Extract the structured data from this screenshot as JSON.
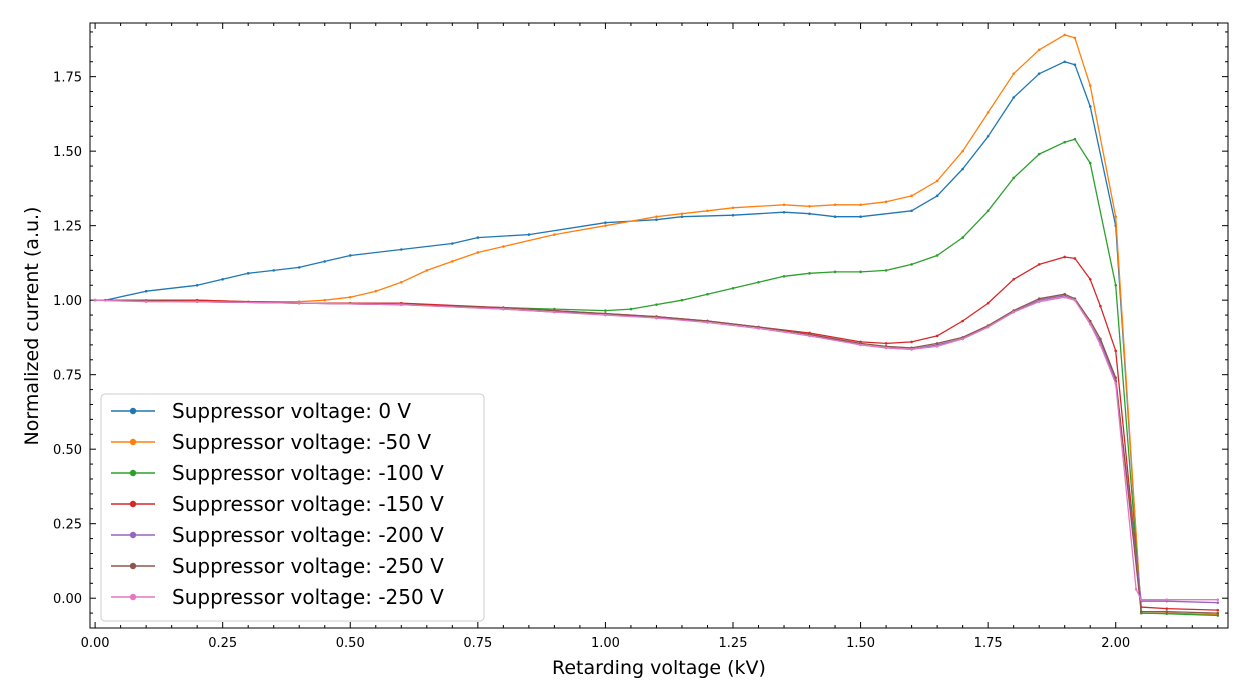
{
  "chart_data": {
    "type": "line",
    "xlabel": "Retarding voltage (kV)",
    "ylabel": "Normalized current (a.u.)",
    "xlim": [
      -0.01,
      2.22
    ],
    "ylim": [
      -0.1,
      1.93
    ],
    "xticks": [
      0.0,
      0.25,
      0.5,
      0.75,
      1.0,
      1.25,
      1.5,
      1.75,
      2.0
    ],
    "xtick_labels": [
      "0.00",
      "0.25",
      "0.50",
      "0.75",
      "1.00",
      "1.25",
      "1.50",
      "1.75",
      "2.00"
    ],
    "yticks": [
      0.0,
      0.25,
      0.5,
      0.75,
      1.0,
      1.25,
      1.5,
      1.75
    ],
    "ytick_labels": [
      "0.00",
      "0.25",
      "0.50",
      "0.75",
      "1.00",
      "1.25",
      "1.50",
      "1.75"
    ],
    "xminor_step": 0.05,
    "yminor_step": 0.05,
    "legend_position": "lower-left",
    "series": [
      {
        "name": "Suppressor voltage: 0 V",
        "color": "#1f77b4",
        "x": [
          0.02,
          0.1,
          0.2,
          0.25,
          0.3,
          0.35,
          0.4,
          0.45,
          0.5,
          0.6,
          0.7,
          0.75,
          0.85,
          1.0,
          1.1,
          1.15,
          1.25,
          1.35,
          1.4,
          1.45,
          1.5,
          1.6,
          1.65,
          1.7,
          1.75,
          1.8,
          1.85,
          1.9,
          1.92,
          1.95,
          2.0,
          2.05,
          2.1,
          2.2
        ],
        "y": [
          1.0,
          1.03,
          1.05,
          1.07,
          1.09,
          1.1,
          1.11,
          1.13,
          1.15,
          1.17,
          1.19,
          1.21,
          1.22,
          1.26,
          1.27,
          1.28,
          1.285,
          1.295,
          1.29,
          1.28,
          1.28,
          1.3,
          1.35,
          1.44,
          1.55,
          1.68,
          1.76,
          1.8,
          1.79,
          1.65,
          1.25,
          -0.05,
          -0.05,
          -0.055
        ]
      },
      {
        "name": "Suppressor voltage: -50 V",
        "color": "#ff7f0e",
        "x": [
          0.0,
          0.1,
          0.2,
          0.3,
          0.4,
          0.45,
          0.5,
          0.55,
          0.6,
          0.65,
          0.7,
          0.75,
          0.8,
          0.9,
          1.0,
          1.1,
          1.15,
          1.2,
          1.25,
          1.35,
          1.4,
          1.45,
          1.5,
          1.55,
          1.6,
          1.65,
          1.7,
          1.75,
          1.8,
          1.85,
          1.9,
          1.92,
          1.95,
          2.0,
          2.05,
          2.1,
          2.2
        ],
        "y": [
          1.0,
          1.0,
          1.0,
          0.995,
          0.995,
          1.0,
          1.01,
          1.03,
          1.06,
          1.1,
          1.13,
          1.16,
          1.18,
          1.22,
          1.25,
          1.28,
          1.29,
          1.3,
          1.31,
          1.32,
          1.315,
          1.32,
          1.32,
          1.33,
          1.35,
          1.4,
          1.5,
          1.63,
          1.76,
          1.84,
          1.89,
          1.88,
          1.72,
          1.28,
          -0.05,
          -0.05,
          -0.055
        ]
      },
      {
        "name": "Suppressor voltage: -100 V",
        "color": "#2ca02c",
        "x": [
          0.0,
          0.2,
          0.4,
          0.5,
          0.7,
          0.8,
          0.9,
          1.0,
          1.05,
          1.1,
          1.15,
          1.2,
          1.25,
          1.3,
          1.35,
          1.4,
          1.45,
          1.5,
          1.55,
          1.6,
          1.65,
          1.7,
          1.75,
          1.8,
          1.85,
          1.9,
          1.92,
          1.95,
          2.0,
          2.05,
          2.1,
          2.2
        ],
        "y": [
          1.0,
          0.995,
          0.99,
          0.99,
          0.98,
          0.975,
          0.97,
          0.965,
          0.97,
          0.985,
          1.0,
          1.02,
          1.04,
          1.06,
          1.08,
          1.09,
          1.095,
          1.095,
          1.1,
          1.12,
          1.15,
          1.21,
          1.3,
          1.41,
          1.49,
          1.53,
          1.54,
          1.46,
          1.05,
          -0.05,
          -0.052,
          -0.058
        ]
      },
      {
        "name": "Suppressor voltage: -150 V",
        "color": "#d62728",
        "x": [
          0.0,
          0.2,
          0.4,
          0.6,
          0.8,
          0.9,
          1.0,
          1.1,
          1.2,
          1.3,
          1.4,
          1.5,
          1.55,
          1.6,
          1.65,
          1.7,
          1.75,
          1.8,
          1.85,
          1.9,
          1.92,
          1.95,
          1.97,
          2.0,
          2.05,
          2.1,
          2.2
        ],
        "y": [
          1.0,
          1.0,
          0.99,
          0.99,
          0.975,
          0.965,
          0.955,
          0.945,
          0.93,
          0.91,
          0.89,
          0.86,
          0.855,
          0.86,
          0.88,
          0.93,
          0.99,
          1.07,
          1.12,
          1.145,
          1.14,
          1.07,
          0.98,
          0.83,
          -0.03,
          -0.035,
          -0.04
        ]
      },
      {
        "name": "Suppressor voltage: -200 V",
        "color": "#9467bd",
        "x": [
          0.0,
          0.2,
          0.4,
          0.6,
          0.8,
          0.9,
          1.0,
          1.1,
          1.2,
          1.3,
          1.4,
          1.5,
          1.55,
          1.6,
          1.65,
          1.7,
          1.75,
          1.8,
          1.85,
          1.9,
          1.92,
          1.95,
          1.97,
          2.0,
          2.05,
          2.1,
          2.2
        ],
        "y": [
          1.0,
          0.995,
          0.99,
          0.985,
          0.97,
          0.96,
          0.955,
          0.94,
          0.93,
          0.91,
          0.885,
          0.85,
          0.84,
          0.835,
          0.85,
          0.87,
          0.91,
          0.96,
          1.0,
          1.015,
          1.0,
          0.92,
          0.86,
          0.73,
          -0.01,
          -0.01,
          -0.015
        ]
      },
      {
        "name": "Suppressor voltage: -250 V",
        "color": "#8c564b",
        "x": [
          0.0,
          0.2,
          0.4,
          0.6,
          0.8,
          0.9,
          1.0,
          1.1,
          1.2,
          1.3,
          1.4,
          1.5,
          1.55,
          1.6,
          1.65,
          1.7,
          1.75,
          1.8,
          1.85,
          1.9,
          1.92,
          1.95,
          1.97,
          2.0,
          2.05,
          2.1,
          2.2
        ],
        "y": [
          1.0,
          0.995,
          0.99,
          0.985,
          0.975,
          0.965,
          0.955,
          0.945,
          0.93,
          0.91,
          0.885,
          0.855,
          0.845,
          0.84,
          0.855,
          0.875,
          0.915,
          0.965,
          1.005,
          1.02,
          1.005,
          0.93,
          0.87,
          0.74,
          -0.045,
          -0.045,
          -0.05
        ]
      },
      {
        "name": "Suppressor voltage: -250 V",
        "color": "#e377c2",
        "x": [
          0.0,
          0.1,
          0.2,
          0.4,
          0.6,
          0.8,
          0.9,
          1.0,
          1.1,
          1.2,
          1.3,
          1.4,
          1.5,
          1.55,
          1.6,
          1.65,
          1.7,
          1.75,
          1.8,
          1.85,
          1.9,
          1.92,
          1.95,
          1.97,
          2.0,
          2.04,
          2.05,
          2.1,
          2.2
        ],
        "y": [
          1.0,
          0.995,
          0.995,
          0.99,
          0.985,
          0.97,
          0.96,
          0.95,
          0.94,
          0.925,
          0.905,
          0.88,
          0.85,
          0.84,
          0.835,
          0.845,
          0.87,
          0.91,
          0.96,
          0.995,
          1.01,
          1.0,
          0.92,
          0.85,
          0.72,
          0.03,
          -0.005,
          -0.005,
          -0.005
        ]
      }
    ]
  }
}
